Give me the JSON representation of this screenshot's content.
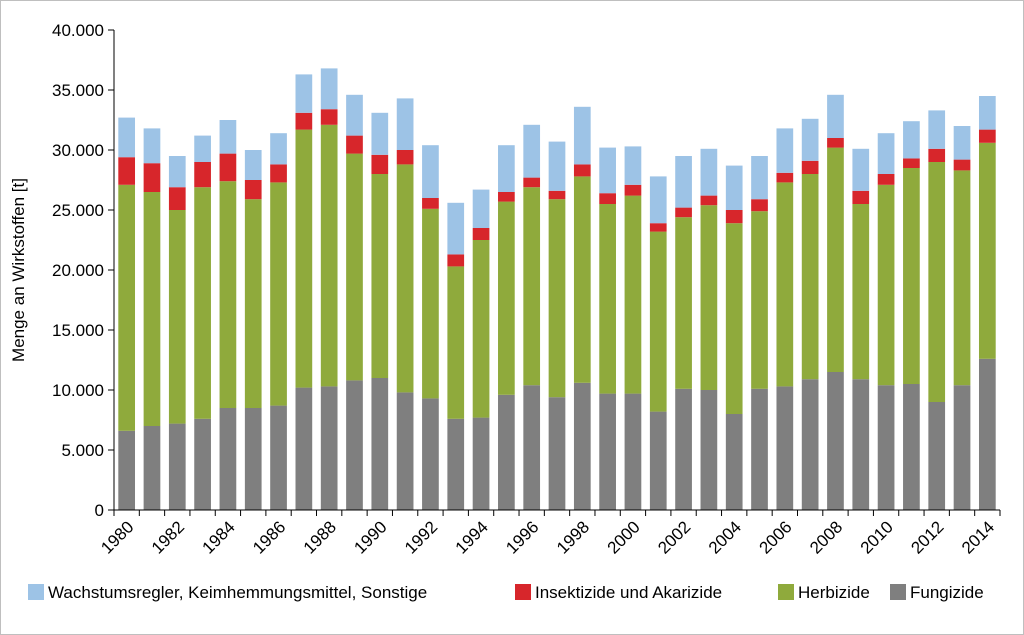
{
  "chart_data": {
    "type": "bar",
    "stacked": true,
    "title": "",
    "xlabel": "",
    "ylabel": "Menge an Wirkstoffen [t]",
    "ylim": [
      0,
      40000
    ],
    "yticks": [
      0,
      5000,
      10000,
      15000,
      20000,
      25000,
      30000,
      35000,
      40000
    ],
    "ytick_labels": [
      "0",
      "5.000",
      "10.000",
      "15.000",
      "20.000",
      "25.000",
      "30.000",
      "35.000",
      "40.000"
    ],
    "grid": false,
    "legend_position": "bottom",
    "categories": [
      "1980",
      "1981",
      "1982",
      "1983",
      "1984",
      "1985",
      "1986",
      "1987",
      "1988",
      "1989",
      "1990",
      "1991",
      "1992",
      "1993",
      "1994",
      "1995",
      "1996",
      "1997",
      "1998",
      "1999",
      "2000",
      "2001",
      "2002",
      "2003",
      "2004",
      "2005",
      "2006",
      "2007",
      "2008",
      "2009",
      "2010",
      "2011",
      "2012",
      "2013",
      "2014"
    ],
    "xtick_labels": [
      "1980",
      "",
      "1982",
      "",
      "1984",
      "",
      "1986",
      "",
      "1988",
      "",
      "1990",
      "",
      "1992",
      "",
      "1994",
      "",
      "1996",
      "",
      "1998",
      "",
      "2000",
      "",
      "2002",
      "",
      "2004",
      "",
      "2006",
      "",
      "2008",
      "",
      "2010",
      "",
      "2012",
      "",
      "2014"
    ],
    "series": [
      {
        "name": "Fungizide",
        "color": "#7f7f7f",
        "values": [
          6600,
          7000,
          7200,
          7600,
          8500,
          8500,
          8700,
          10200,
          10300,
          10800,
          11000,
          9800,
          9300,
          7600,
          7700,
          9600,
          10400,
          9400,
          10600,
          9700,
          9700,
          8200,
          10100,
          10000,
          8000,
          10100,
          10300,
          10900,
          11500,
          10900,
          10400,
          10500,
          9000,
          10400,
          12600
        ]
      },
      {
        "name": "Herbizide",
        "color": "#8faa3c",
        "values": [
          20500,
          19500,
          17800,
          19300,
          18900,
          17400,
          18600,
          21500,
          21800,
          18900,
          17000,
          19000,
          15800,
          12700,
          14800,
          16100,
          16500,
          16500,
          17200,
          15800,
          16500,
          15000,
          14300,
          15400,
          15900,
          14800,
          17000,
          17100,
          18700,
          14600,
          16700,
          18000,
          20000,
          17900,
          18000
        ]
      },
      {
        "name": "Insektizide und Akarizide",
        "color": "#d7262b",
        "values": [
          2300,
          2400,
          1900,
          2100,
          2300,
          1600,
          1500,
          1400,
          1300,
          1500,
          1600,
          1200,
          900,
          1000,
          1000,
          800,
          800,
          700,
          1000,
          900,
          900,
          700,
          800,
          800,
          1100,
          1000,
          800,
          1100,
          800,
          1100,
          900,
          800,
          1100,
          900,
          1100
        ]
      },
      {
        "name": "Wachstumsregler, Keimhemmungsmittel, Sonstige",
        "color": "#9dc3e6",
        "values": [
          3300,
          2900,
          2600,
          2200,
          2800,
          2500,
          2600,
          3200,
          3400,
          3400,
          3500,
          4300,
          4400,
          4300,
          3200,
          3900,
          4400,
          4100,
          4800,
          3800,
          3200,
          3900,
          4300,
          3900,
          3700,
          3600,
          3700,
          3500,
          3600,
          3500,
          3400,
          3100,
          3200,
          2800,
          2800
        ]
      }
    ],
    "legend_order": [
      "Wachstumsregler, Keimhemmungsmittel, Sonstige",
      "Insektizide und Akarizide",
      "Herbizide",
      "Fungizide"
    ]
  }
}
